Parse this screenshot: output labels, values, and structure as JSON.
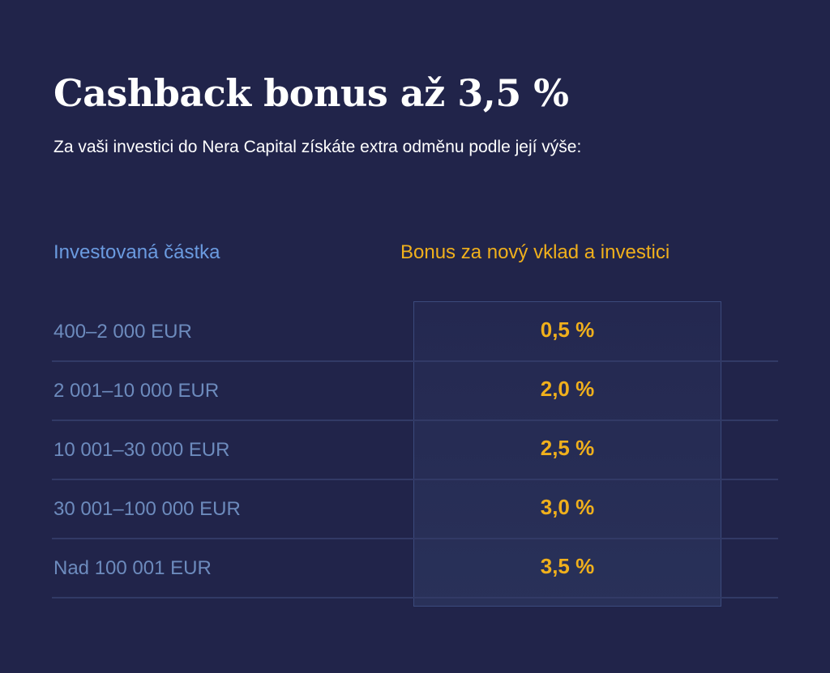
{
  "header": {
    "title": "Cashback bonus až 3,5 %",
    "subtitle": "Za vaši investici do Nera Capital získáte extra odměnu podle její výše:"
  },
  "table": {
    "columns": [
      "Investovaná částka",
      "Bonus za nový vklad a investici"
    ],
    "rows": [
      {
        "amount": "400–2 000 EUR",
        "bonus": "0,5 %"
      },
      {
        "amount": "2 001–10 000 EUR",
        "bonus": "2,0 %"
      },
      {
        "amount": "10 001–30 000 EUR",
        "bonus": "2,5 %"
      },
      {
        "amount": "30 001–100 000 EUR",
        "bonus": "3,0 %"
      },
      {
        "amount": "Nad 100 001 EUR",
        "bonus": "3,5 %"
      }
    ]
  },
  "colors": {
    "background": "#21244a",
    "accent": "#f0b01c",
    "header_blue": "#6b9be0",
    "amount_text": "#6d8bbd"
  }
}
